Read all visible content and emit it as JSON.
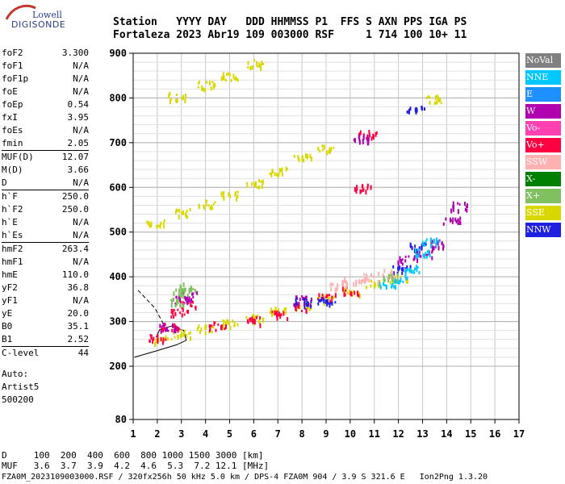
{
  "logo": {
    "line1": "Lowell",
    "line2": "DIGISONDE"
  },
  "header": {
    "line1": "Station   YYYY DAY   DDD HHMMSS P1  FFS S AXN PPS IGA PS",
    "line2": "Fortaleza 2023 Abr19 109 003000 RSF     1 714 100 10+ 11"
  },
  "params": [
    {
      "name": "foF2",
      "value": "3.300"
    },
    {
      "name": "foF1",
      "value": "N/A"
    },
    {
      "name": "foF1p",
      "value": "N/A"
    },
    {
      "name": "foE",
      "value": "N/A"
    },
    {
      "name": "foEp",
      "value": "0.54"
    },
    {
      "name": "fxI",
      "value": "3.95"
    },
    {
      "name": "foEs",
      "value": "N/A"
    },
    {
      "name": "fmin",
      "value": "2.05"
    },
    {
      "name": "MUF(D)",
      "value": "12.07",
      "sep": true
    },
    {
      "name": "M(D)",
      "value": "3.66"
    },
    {
      "name": "D",
      "value": "N/A"
    },
    {
      "name": "h`F",
      "value": "250.0",
      "sep": true
    },
    {
      "name": "h`F2",
      "value": "250.0"
    },
    {
      "name": "h`E",
      "value": "N/A"
    },
    {
      "name": "h`Es",
      "value": "N/A"
    },
    {
      "name": "hmF2",
      "value": "263.4",
      "sep": true
    },
    {
      "name": "hmF1",
      "value": "N/A"
    },
    {
      "name": "hmE",
      "value": "110.0"
    },
    {
      "name": "yF2",
      "value": "36.8"
    },
    {
      "name": "yF1",
      "value": "N/A"
    },
    {
      "name": "yE",
      "value": "20.0"
    },
    {
      "name": "B0",
      "value": "35.1"
    },
    {
      "name": "B1",
      "value": "2.52"
    },
    {
      "name": "C-level",
      "value": "44",
      "sep": true
    }
  ],
  "auto": {
    "line1": "Auto:",
    "line2": "Artist5",
    "line3": "500200"
  },
  "legend": [
    {
      "label": "NoVal",
      "color": "#808080"
    },
    {
      "label": "NNE",
      "color": "#00c8ff"
    },
    {
      "label": "E",
      "color": "#1e90ff"
    },
    {
      "label": "W",
      "color": "#b000b0"
    },
    {
      "label": "Vo-",
      "color": "#ff40b0"
    },
    {
      "label": "Vo+",
      "color": "#ff0040"
    },
    {
      "label": "SSW",
      "color": "#ffb0b0"
    },
    {
      "label": "X-",
      "color": "#008000"
    },
    {
      "label": "X+",
      "color": "#80c060"
    },
    {
      "label": "SSE",
      "color": "#d8d800"
    },
    {
      "label": "NNW",
      "color": "#2020e0"
    }
  ],
  "footer": {
    "dline": "D     100  200  400  600  800 1000 1500 3000 [km]",
    "mufline": "MUF   3.6  3.7  3.9  4.2  4.6  5.3  7.2 12.1 [MHz]",
    "fileline": "FZA0M_2023109003000.RSF / 320fx256h 50 kHz 5.0 km / DPS-4 FZA0M 904 / 3.9 S 321.6 E   Ion2Png 1.3.20"
  },
  "chart_data": {
    "type": "scatter",
    "xlim": [
      1,
      17
    ],
    "ylim": [
      80,
      900
    ],
    "x_ticks": [
      1,
      2,
      3,
      4,
      5,
      6,
      7,
      8,
      9,
      10,
      11,
      12,
      13,
      14,
      15,
      16,
      17
    ],
    "y_ticks": [
      80,
      200,
      300,
      400,
      500,
      600,
      700,
      800,
      900
    ],
    "grid": true,
    "legend_position": "right",
    "series": [
      {
        "name": "SSE",
        "values": [
          [
            2.2,
            262
          ],
          [
            3.0,
            275
          ],
          [
            4.0,
            285
          ],
          [
            5.0,
            297
          ],
          [
            6.0,
            310
          ],
          [
            7.0,
            325
          ],
          [
            8.0,
            338
          ],
          [
            9.0,
            355
          ],
          [
            10.0,
            368
          ],
          [
            11.0,
            385
          ],
          [
            12.0,
            400
          ],
          [
            1.9,
            520
          ],
          [
            3.0,
            545
          ],
          [
            4.0,
            565
          ],
          [
            5.0,
            585
          ],
          [
            6.0,
            610
          ],
          [
            7.0,
            638
          ],
          [
            8.0,
            668
          ],
          [
            9.0,
            690
          ],
          [
            2.8,
            805
          ],
          [
            4.0,
            830
          ],
          [
            5.0,
            850
          ],
          [
            6.0,
            878
          ],
          [
            13.5,
            800
          ]
        ]
      },
      {
        "name": "Vo+",
        "values": [
          [
            2.0,
            265
          ],
          [
            2.5,
            290
          ],
          [
            2.9,
            320
          ],
          [
            3.2,
            340
          ],
          [
            4.5,
            292
          ],
          [
            6.0,
            305
          ],
          [
            7.0,
            318
          ],
          [
            8.0,
            335
          ],
          [
            9.0,
            355
          ],
          [
            10.0,
            370
          ],
          [
            10.5,
            600
          ],
          [
            10.7,
            720
          ]
        ]
      },
      {
        "name": "W",
        "values": [
          [
            2.4,
            290
          ],
          [
            3.0,
            350
          ],
          [
            3.3,
            360
          ],
          [
            8.0,
            350
          ],
          [
            10.5,
            710
          ],
          [
            12.3,
            440
          ],
          [
            13.0,
            450
          ],
          [
            13.6,
            475
          ],
          [
            14.2,
            530
          ],
          [
            14.5,
            560
          ]
        ]
      },
      {
        "name": "NNW",
        "values": [
          [
            8.0,
            345
          ],
          [
            9.0,
            350
          ],
          [
            12.1,
            420
          ],
          [
            12.8,
            470
          ],
          [
            12.7,
            780
          ]
        ]
      },
      {
        "name": "NNE",
        "values": [
          [
            11.5,
            385
          ],
          [
            12.0,
            400
          ],
          [
            12.5,
            420
          ],
          [
            13.0,
            455
          ],
          [
            13.3,
            480
          ]
        ]
      },
      {
        "name": "SSW",
        "values": [
          [
            10.0,
            390
          ],
          [
            10.8,
            400
          ],
          [
            11.5,
            410
          ],
          [
            9.5,
            380
          ]
        ]
      },
      {
        "name": "X+",
        "values": [
          [
            2.8,
            345
          ],
          [
            3.0,
            370
          ],
          [
            3.2,
            380
          ],
          [
            11.7,
            400
          ]
        ]
      }
    ],
    "curves": [
      {
        "name": "profile",
        "values": [
          [
            1.05,
            220
          ],
          [
            2.0,
            235
          ],
          [
            2.8,
            248
          ],
          [
            3.2,
            258
          ],
          [
            3.1,
            280
          ],
          [
            2.6,
            290
          ],
          [
            2.1,
            282
          ],
          [
            1.95,
            265
          ]
        ]
      },
      {
        "name": "profile-dashed",
        "values": [
          [
            1.2,
            370
          ],
          [
            1.9,
            330
          ],
          [
            2.2,
            300
          ],
          [
            2.35,
            280
          ]
        ]
      }
    ]
  }
}
